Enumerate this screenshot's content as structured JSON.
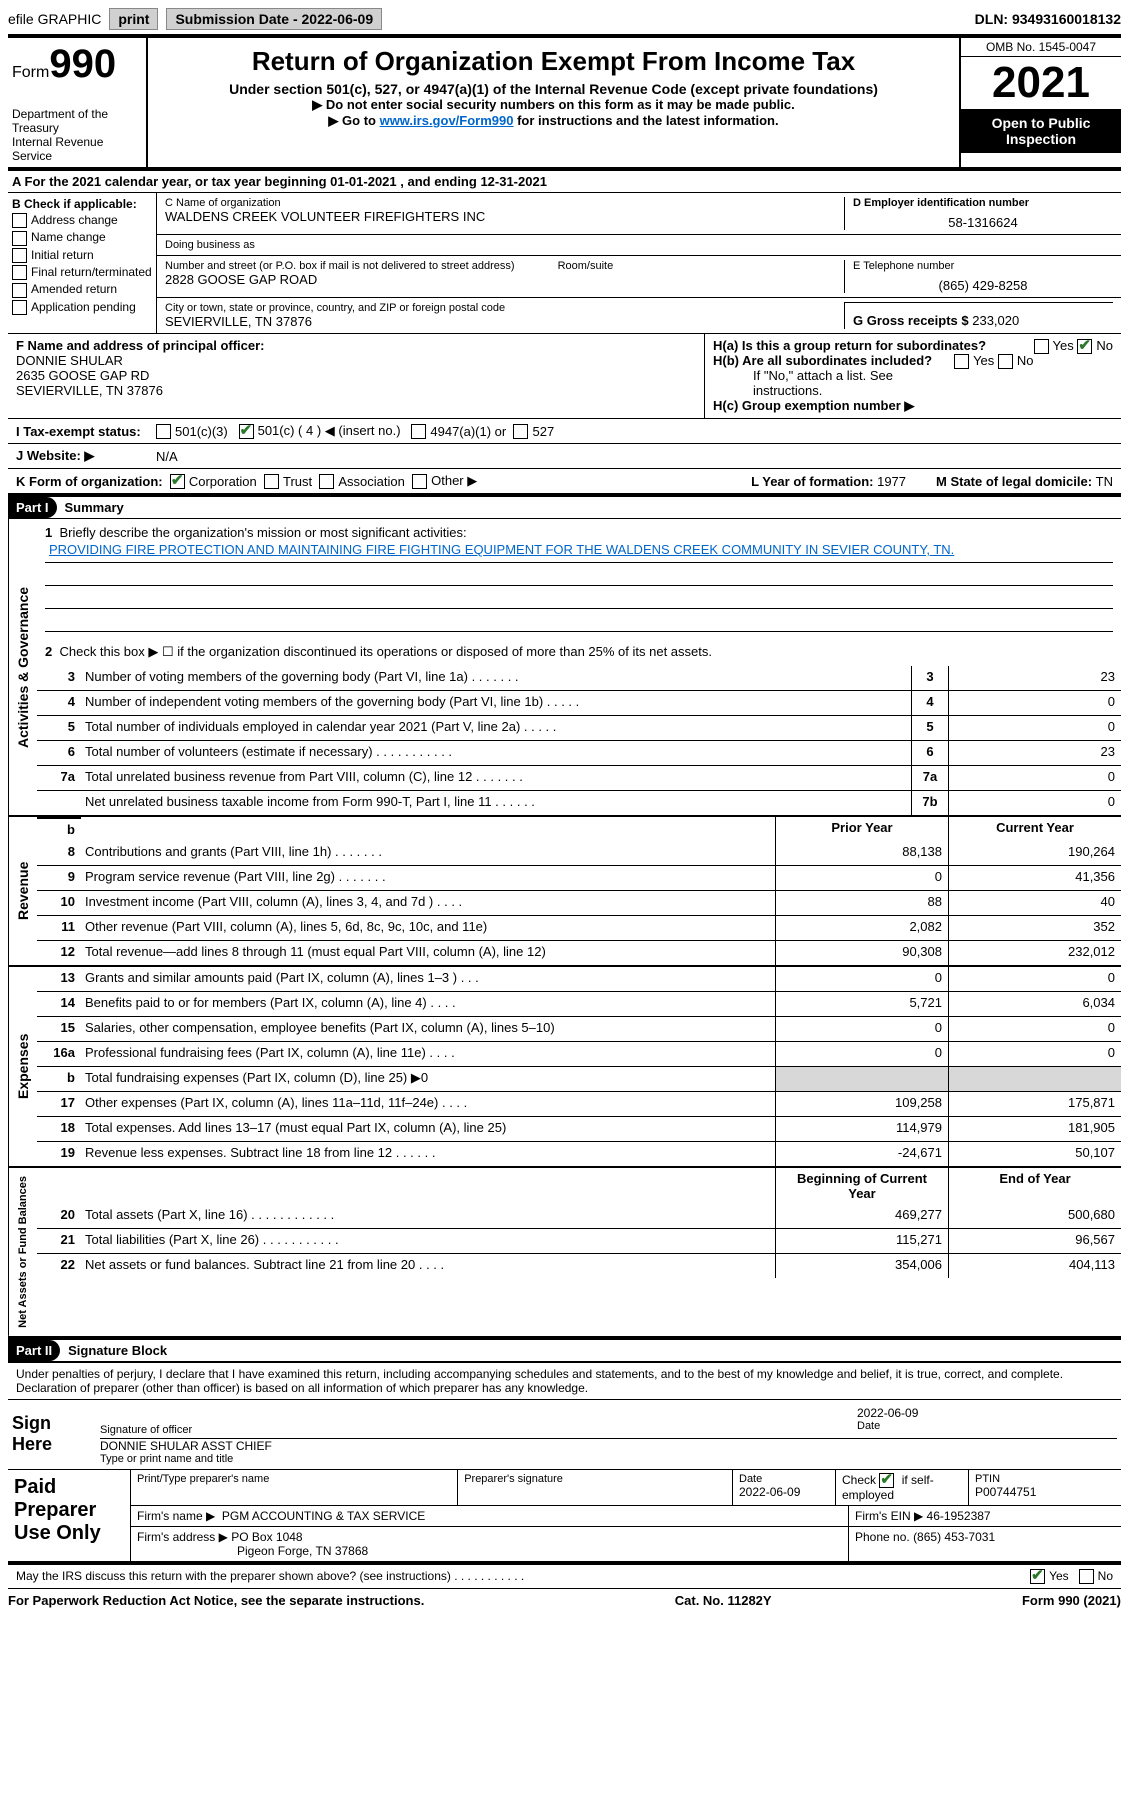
{
  "topbar": {
    "efile": "efile GRAPHIC",
    "print": "print",
    "submission_label": "Submission Date - ",
    "submission_date": "2022-06-09",
    "dln_label": "DLN: ",
    "dln": "93493160018132"
  },
  "header": {
    "form_label": "Form",
    "form_number": "990",
    "title": "Return of Organization Exempt From Income Tax",
    "subtitle": "Under section 501(c), 527, or 4947(a)(1) of the Internal Revenue Code (except private foundations)",
    "warn": "▶ Do not enter social security numbers on this form as it may be made public.",
    "goto_prefix": "▶ Go to ",
    "goto_link": "www.irs.gov/Form990",
    "goto_suffix": " for instructions and the latest information.",
    "dept": "Department of the Treasury",
    "irs": "Internal Revenue Service",
    "omb": "OMB No. 1545-0047",
    "year": "2021",
    "open_public": "Open to Public Inspection"
  },
  "rowA": {
    "text_prefix": "A For the 2021 calendar year, or tax year beginning ",
    "begin": "01-01-2021",
    "mid": " , and ending ",
    "end": "12-31-2021"
  },
  "colB": {
    "header": "B Check if applicable:",
    "addr_change": "Address change",
    "name_change": "Name change",
    "initial": "Initial return",
    "final": "Final return/terminated",
    "amended": "Amended return",
    "app_pending": "Application pending"
  },
  "boxC": {
    "name_label": "C Name of organization",
    "name": "WALDENS CREEK VOLUNTEER FIREFIGHTERS INC",
    "dba_label": "Doing business as",
    "dba": "",
    "street_label": "Number and street (or P.O. box if mail is not delivered to street address)",
    "room_label": "Room/suite",
    "street": "2828 GOOSE GAP ROAD",
    "city_label": "City or town, state or province, country, and ZIP or foreign postal code",
    "city": "SEVIERVILLE, TN  37876"
  },
  "boxD": {
    "ein_label": "D Employer identification number",
    "ein": "58-1316624",
    "phone_label": "E Telephone number",
    "phone": "(865) 429-8258",
    "gross_label": "G Gross receipts $ ",
    "gross": "233,020"
  },
  "boxF": {
    "label": "F Name and address of principal officer:",
    "name": "DONNIE SHULAR",
    "street": "2635 GOOSE GAP RD",
    "city": "SEVIERVILLE, TN  37876"
  },
  "boxH": {
    "ha_label": "H(a)  Is this a group return for subordinates?",
    "yes": "Yes",
    "no": "No",
    "hb_label": "H(b)  Are all subordinates included?",
    "hb_note": "If \"No,\" attach a list. See instructions.",
    "hc_label": "H(c)  Group exemption number ▶"
  },
  "rowI": {
    "label": "I   Tax-exempt status:",
    "c3": "501(c)(3)",
    "c_other": "501(c) ( 4 ) ◀ (insert no.)",
    "a1": "4947(a)(1) or",
    "527": "527"
  },
  "rowJ": {
    "label": "J   Website: ▶",
    "value": "N/A"
  },
  "rowK": {
    "label": "K Form of organization:",
    "corp": "Corporation",
    "trust": "Trust",
    "assoc": "Association",
    "other": "Other ▶",
    "year_label": "L Year of formation: ",
    "year": "1977",
    "state_label": "M State of legal domicile: ",
    "state": "TN"
  },
  "parts": {
    "part1": "Part I",
    "summary": "Summary",
    "part2": "Part II",
    "sigblock": "Signature Block"
  },
  "summary": {
    "mission_label": "Briefly describe the organization's mission or most significant activities:",
    "mission": "PROVIDING FIRE PROTECTION AND MAINTAINING FIRE FIGHTING EQUIPMENT FOR THE WALDENS CREEK COMMUNITY IN SEVIER COUNTY, TN.",
    "line2": "Check this box ▶ ☐  if the organization discontinued its operations or disposed of more than 25% of its net assets.",
    "sections": {
      "governance": "Activities & Governance",
      "revenue": "Revenue",
      "expenses": "Expenses",
      "netassets": "Net Assets or Fund Balances"
    },
    "col_prior": "Prior Year",
    "col_current": "Current Year",
    "col_begin": "Beginning of Current Year",
    "col_end": "End of Year",
    "lines_gov": [
      {
        "n": "3",
        "desc": "Number of voting members of the governing body (Part VI, line 1a)   .    .    .    .    .    .    .",
        "box": "3",
        "val": "23"
      },
      {
        "n": "4",
        "desc": "Number of independent voting members of the governing body (Part VI, line 1b)   .    .    .    .    .",
        "box": "4",
        "val": "0"
      },
      {
        "n": "5",
        "desc": "Total number of individuals employed in calendar year 2021 (Part V, line 2a)   .    .    .    .    .",
        "box": "5",
        "val": "0"
      },
      {
        "n": "6",
        "desc": "Total number of volunteers (estimate if necessary)   .    .    .    .    .    .    .    .    .    .    .",
        "box": "6",
        "val": "23"
      },
      {
        "n": "7a",
        "desc": "Total unrelated business revenue from Part VIII, column (C), line 12   .    .    .    .    .    .    .",
        "box": "7a",
        "val": "0"
      },
      {
        "n": "",
        "desc": "Net unrelated business taxable income from Form 990-T, Part I, line 11   .    .    .    .    .    .",
        "box": "7b",
        "val": "0"
      }
    ],
    "lines_rev": [
      {
        "n": "8",
        "desc": "Contributions and grants (Part VIII, line 1h)   .    .    .    .    .    .    .",
        "prior": "88,138",
        "curr": "190,264"
      },
      {
        "n": "9",
        "desc": "Program service revenue (Part VIII, line 2g)   .    .    .    .    .    .    .",
        "prior": "0",
        "curr": "41,356"
      },
      {
        "n": "10",
        "desc": "Investment income (Part VIII, column (A), lines 3, 4, and 7d )   .    .    .    .",
        "prior": "88",
        "curr": "40"
      },
      {
        "n": "11",
        "desc": "Other revenue (Part VIII, column (A), lines 5, 6d, 8c, 9c, 10c, and 11e)",
        "prior": "2,082",
        "curr": "352"
      },
      {
        "n": "12",
        "desc": "Total revenue—add lines 8 through 11 (must equal Part VIII, column (A), line 12)",
        "prior": "90,308",
        "curr": "232,012"
      }
    ],
    "lines_exp": [
      {
        "n": "13",
        "desc": "Grants and similar amounts paid (Part IX, column (A), lines 1–3 )   .    .    .",
        "prior": "0",
        "curr": "0"
      },
      {
        "n": "14",
        "desc": "Benefits paid to or for members (Part IX, column (A), line 4)   .    .    .    .",
        "prior": "5,721",
        "curr": "6,034"
      },
      {
        "n": "15",
        "desc": "Salaries, other compensation, employee benefits (Part IX, column (A), lines 5–10)",
        "prior": "0",
        "curr": "0"
      },
      {
        "n": "16a",
        "desc": "Professional fundraising fees (Part IX, column (A), line 11e)   .    .    .    .",
        "prior": "0",
        "curr": "0"
      },
      {
        "n": "b",
        "desc": "Total fundraising expenses (Part IX, column (D), line 25) ▶0",
        "prior": "",
        "curr": "",
        "shaded": true
      },
      {
        "n": "17",
        "desc": "Other expenses (Part IX, column (A), lines 11a–11d, 11f–24e)   .    .    .    .",
        "prior": "109,258",
        "curr": "175,871"
      },
      {
        "n": "18",
        "desc": "Total expenses. Add lines 13–17 (must equal Part IX, column (A), line 25)",
        "prior": "114,979",
        "curr": "181,905"
      },
      {
        "n": "19",
        "desc": "Revenue less expenses. Subtract line 18 from line 12   .    .    .    .    .    .",
        "prior": "-24,671",
        "curr": "50,107"
      }
    ],
    "lines_net": [
      {
        "n": "20",
        "desc": "Total assets (Part X, line 16)   .    .    .    .    .    .    .    .    .    .    .    .",
        "prior": "469,277",
        "curr": "500,680"
      },
      {
        "n": "21",
        "desc": "Total liabilities (Part X, line 26)   .    .    .    .    .    .    .    .    .    .    .",
        "prior": "115,271",
        "curr": "96,567"
      },
      {
        "n": "22",
        "desc": "Net assets or fund balances. Subtract line 21 from line 20   .    .    .    .",
        "prior": "354,006",
        "curr": "404,113"
      }
    ]
  },
  "signature": {
    "penalty": "Under penalties of perjury, I declare that I have examined this return, including accompanying schedules and statements, and to the best of my knowledge and belief, it is true, correct, and complete. Declaration of preparer (other than officer) is based on all information of which preparer has any knowledge.",
    "sign_here": "Sign Here",
    "sig_officer_label": "Signature of officer",
    "date_label": "Date",
    "sig_date": "2022-06-09",
    "officer_name": "DONNIE SHULAR  ASST CHIEF",
    "officer_label": "Type or print name and title",
    "paid_preparer": "Paid Preparer Use Only",
    "prep_name_label": "Print/Type preparer's name",
    "prep_sig_label": "Preparer's signature",
    "prep_date_label": "Date",
    "prep_date": "2022-06-09",
    "check_if_label": "Check",
    "check_if_suffix": "if self-employed",
    "ptin_label": "PTIN",
    "ptin": "P00744751",
    "firm_name_label": "Firm's name    ▶",
    "firm_name": "PGM ACCOUNTING & TAX SERVICE",
    "firm_ein_label": "Firm's EIN ▶",
    "firm_ein": "46-1952387",
    "firm_addr_label": "Firm's address ▶",
    "firm_addr1": "PO Box 1048",
    "firm_addr2": "Pigeon Forge, TN  37868",
    "firm_phone_label": "Phone no. ",
    "firm_phone": "(865) 453-7031",
    "may_irs": "May the IRS discuss this return with the preparer shown above? (see instructions)   .    .    .    .    .    .    .    .    .    .    ."
  },
  "footer": {
    "paperwork": "For Paperwork Reduction Act Notice, see the separate instructions.",
    "cat": "Cat. No. 11282Y",
    "form": "Form 990 (2021)"
  }
}
